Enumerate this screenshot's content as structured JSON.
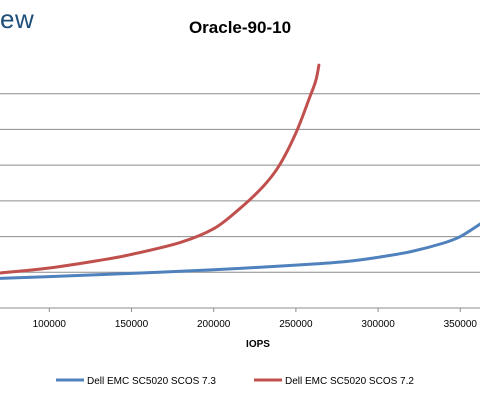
{
  "watermark": "ew",
  "chart_data": {
    "type": "line",
    "title": "Oracle-90-10",
    "xlabel": "IOPS",
    "ylabel": "",
    "xlim": [
      70000,
      362000
    ],
    "ylim": [
      0,
      7
    ],
    "x_ticks": [
      "100000",
      "150000",
      "200000",
      "250000",
      "300000",
      "350000"
    ],
    "x_tick_values": [
      100000,
      150000,
      200000,
      250000,
      300000,
      350000
    ],
    "grid": true,
    "gridline_values": [
      1,
      2,
      3,
      4,
      5,
      6
    ],
    "legend_position": "bottom",
    "series": [
      {
        "name": "Dell EMC SC5020 SCOS 7.3",
        "color": "#4f81bd",
        "points": [
          [
            70000,
            0.83
          ],
          [
            100000,
            0.88
          ],
          [
            150000,
            0.97
          ],
          [
            200000,
            1.07
          ],
          [
            250000,
            1.2
          ],
          [
            280000,
            1.3
          ],
          [
            300000,
            1.42
          ],
          [
            320000,
            1.58
          ],
          [
            340000,
            1.82
          ],
          [
            350000,
            2.0
          ],
          [
            362000,
            2.35
          ]
        ]
      },
      {
        "name": "Dell EMC SC5020 SCOS 7.2",
        "color": "#c0504d",
        "points": [
          [
            70000,
            0.98
          ],
          [
            100000,
            1.12
          ],
          [
            130000,
            1.33
          ],
          [
            150000,
            1.5
          ],
          [
            180000,
            1.84
          ],
          [
            200000,
            2.22
          ],
          [
            215000,
            2.75
          ],
          [
            230000,
            3.4
          ],
          [
            240000,
            4.0
          ],
          [
            250000,
            4.9
          ],
          [
            258000,
            5.85
          ],
          [
            262000,
            6.35
          ],
          [
            264000,
            6.8
          ]
        ]
      }
    ]
  }
}
